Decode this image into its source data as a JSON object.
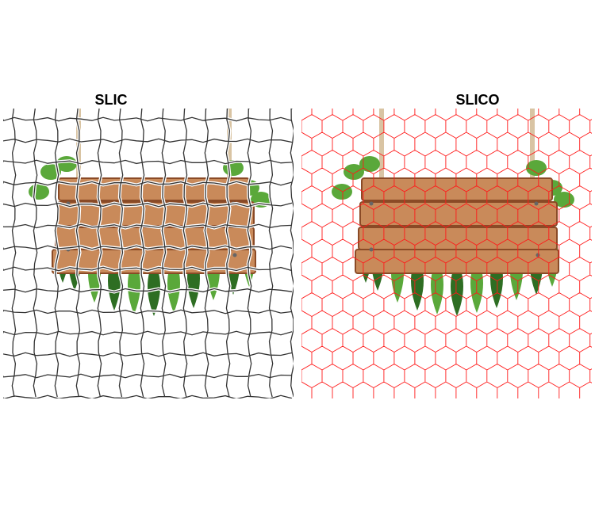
{
  "panels": [
    {
      "id": "slic",
      "title": "SLIC",
      "boundary_color": "#333333",
      "halo_color": "#ffffff",
      "grid": "square"
    },
    {
      "id": "slico",
      "title": "SLICO",
      "boundary_color": "#ff1a1a",
      "halo_color": null,
      "grid": "hexagonal"
    }
  ],
  "scene": {
    "subject": "hanging-wooden-sign",
    "plank_color": "#c98a5a",
    "plank_dark": "#8a4a26",
    "rope_color": "#d9c4a3",
    "leaf_color": "#5aa83a",
    "leaf_dark": "#2e6e23"
  }
}
